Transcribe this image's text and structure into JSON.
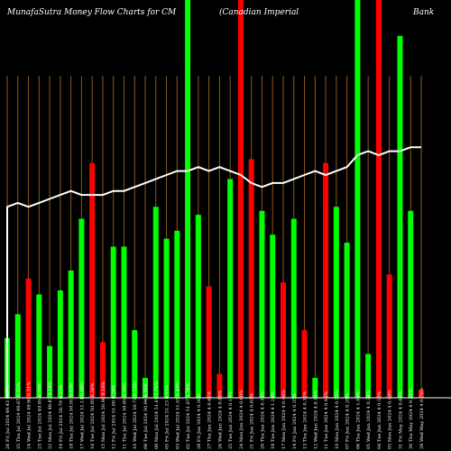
{
  "header": {
    "left": "MunafaSutra  Money Flow  Charts for CM",
    "middle": "(Canadian  Imperial",
    "right": "Bank"
  },
  "chart_data": {
    "type": "bar",
    "title": "MunafaSutra  Money Flow  Charts for CM (Canadian  Imperial Bank",
    "grid": true,
    "ylim": [
      0,
      100
    ],
    "series": [
      {
        "values": [
          15,
          21,
          30,
          26,
          13,
          27,
          32,
          45,
          59,
          14,
          38,
          38,
          17,
          5,
          48,
          40,
          42,
          100,
          46,
          28,
          6,
          55,
          100,
          60,
          47,
          41,
          29,
          45,
          17,
          5,
          59,
          48,
          39,
          100,
          11,
          100,
          31,
          91,
          47,
          2
        ],
        "colors": [
          "green",
          "green",
          "red",
          "green",
          "green",
          "green",
          "green",
          "green",
          "red",
          "red",
          "green",
          "green",
          "green",
          "green",
          "green",
          "green",
          "green",
          "green",
          "green",
          "red",
          "red",
          "green",
          "red",
          "red",
          "green",
          "green",
          "red",
          "green",
          "red",
          "green",
          "red",
          "green",
          "green",
          "green",
          "green",
          "red",
          "red",
          "green",
          "green",
          "red"
        ]
      },
      {
        "values": [
          48,
          49,
          48,
          49,
          50,
          51,
          52,
          51,
          51,
          51,
          52,
          52,
          53,
          54,
          55,
          56,
          57,
          57,
          58,
          57,
          58,
          57,
          56,
          54,
          53,
          54,
          54,
          55,
          56,
          57,
          56,
          57,
          58,
          61,
          62,
          61,
          62,
          62,
          63,
          63
        ]
      }
    ],
    "categories": [
      "26 Fri Jul 2024",
      "25 Thu Jul 2024",
      "24 Wed Jul 2024",
      "23 Tue Jul 2024",
      "22 Mon Jul 2024",
      "19 Fri Jul 2024",
      "18 Thu Jul 2024",
      "17 Wed Jul 2024",
      "16 Tue Jul 2024",
      "15 Mon Jul 2024",
      "12 Fri Jul 2024",
      "11 Thu Jul 2024",
      "10 Wed Jul 2024",
      "09 Tue Jul 2024",
      "08 Mon Jul 2024",
      "05 Fri Jul 2024",
      "03 Wed Jul 2024",
      "02 Tue Jul 2024",
      "28 Fri Jun 2024",
      "27 Thu Jun 2024",
      "26 Wed Jun 2024",
      "25 Tue Jun 2024",
      "24 Mon Jun 2024",
      "21 Fri Jun 2024",
      "20 Thu Jun 2024",
      "18 Tue Jun 2024",
      "17 Mon Jun 2024",
      "14 Fri Jun 2024",
      "13 Thu Jun 2024",
      "12 Wed Jun 2024",
      "11 Tue Jun 2024",
      "10 Mon Jun 2024",
      "07 Fri Jun 2024",
      "06 Thu Jun 2024",
      "05 Wed Jun 2024",
      "04 Tue Jun 2024",
      "03 Mon Jun 2024",
      "31 Fri May 2024",
      "30 Thu May 2024",
      "29 Wed May 2024"
    ],
    "value_labels": [
      "49.43 0.67%",
      "49.67 0.23%",
      "49.90 0.31%",
      "49.95 0.09%",
      "49.83 0.14%",
      "50.70 0.38%",
      "50.91 0.63%",
      "51.14 0.88%",
      "50.95 0.26%",
      "50.90 0.10%",
      "51.00 0.18%",
      "50.85 0.35%",
      "50.71 0.22%",
      "50.94 0.46%",
      "51.61 1.76%",
      "51.23 0.53%",
      "51.55 0.43%",
      "51.67 1.76%",
      "4 0.36%",
      "4 0.61%",
      "4 0.80%",
      "4 0.17%",
      "4 0.60%",
      "4 0.65%",
      "4 0.38%",
      "4 1.24%",
      "4 0.46%",
      "4 0.35%",
      "4 0.32%",
      "4 0.15%",
      "4 0.42%",
      "4 0.55%",
      "4 0.28%",
      "4 1.09%",
      "4 0.26%",
      "4 0.52%",
      "4 0.48%",
      "4 0.65%",
      "4 0.31%",
      "4 0.74%"
    ]
  },
  "colors": {
    "background": "#000000",
    "grid": "#8B5A1A",
    "green": "#00FF00",
    "red": "#FF0000",
    "line": "#FFFFFF",
    "axis": "#FFFFFF"
  }
}
